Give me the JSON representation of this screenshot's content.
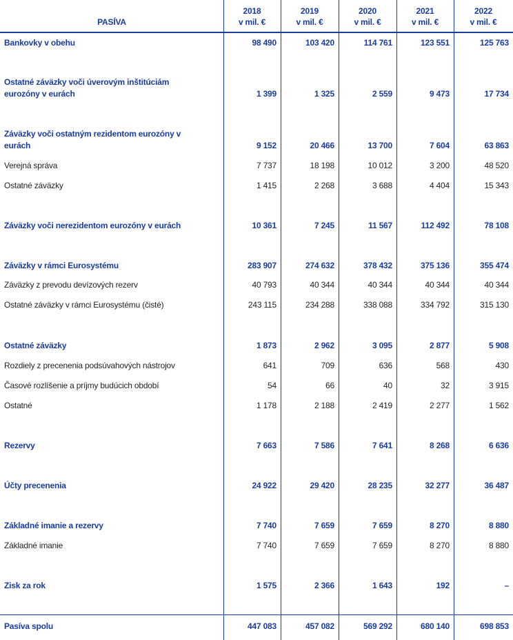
{
  "header": {
    "title": "PASÍVA",
    "columns": [
      {
        "year": "2018",
        "unit": "v mil. €"
      },
      {
        "year": "2019",
        "unit": "v mil. €"
      },
      {
        "year": "2020",
        "unit": "v mil. €"
      },
      {
        "year": "2021",
        "unit": "v mil. €"
      },
      {
        "year": "2022",
        "unit": "v mil. €"
      }
    ]
  },
  "colors": {
    "accent": "#1a3c9e",
    "text": "#222222"
  },
  "rows": [
    {
      "label": "Bankovky v obehu",
      "bold": true,
      "values": [
        "98 490",
        "103 420",
        "114 761",
        "123 551",
        "125 763"
      ]
    },
    {
      "label": "Ostatné záväzky voči úverovým inštitúciám eurozóny v eurách",
      "bold": true,
      "values": [
        "1 399",
        "1 325",
        "2 559",
        "9 473",
        "17 734"
      ]
    },
    {
      "label": "Záväzky voči ostatným rezidentom eurozóny v eurách",
      "bold": true,
      "values": [
        "9 152",
        "20 466",
        "13 700",
        "7 604",
        "63 863"
      ]
    },
    {
      "label": "Verejná správa",
      "bold": false,
      "values": [
        "7 737",
        "18 198",
        "10 012",
        "3 200",
        "48 520"
      ]
    },
    {
      "label": "Ostatné záväzky",
      "bold": false,
      "values": [
        "1 415",
        "2 268",
        "3 688",
        "4 404",
        "15 343"
      ]
    },
    {
      "label": "Záväzky voči nerezidentom eurozóny v eurách",
      "bold": true,
      "values": [
        "10 361",
        "7 245",
        "11 567",
        "112 492",
        "78 108"
      ]
    },
    {
      "label": "Záväzky v rámci Eurosystému",
      "bold": true,
      "values": [
        "283 907",
        "274 632",
        "378 432",
        "375 136",
        "355 474"
      ]
    },
    {
      "label": "Záväzky z prevodu devízových rezerv",
      "bold": false,
      "values": [
        "40 793",
        "40 344",
        "40 344",
        "40 344",
        "40 344"
      ]
    },
    {
      "label": "Ostatné záväzky v rámci Eurosystému (čisté)",
      "bold": false,
      "values": [
        "243 115",
        "234 288",
        "338 088",
        "334 792",
        "315 130"
      ]
    },
    {
      "label": "Ostatné záväzky",
      "bold": true,
      "values": [
        "1 873",
        "2 962",
        "3 095",
        "2 877",
        "5 908"
      ]
    },
    {
      "label": "Rozdiely z precenenia podsúvahových nástrojov",
      "bold": false,
      "values": [
        "641",
        "709",
        "636",
        "568",
        "430"
      ]
    },
    {
      "label": "Časové rozlíšenie a príjmy budúcich období",
      "bold": false,
      "values": [
        "54",
        "66",
        "40",
        "32",
        "3 915"
      ]
    },
    {
      "label": "Ostatné",
      "bold": false,
      "values": [
        "1 178",
        "2 188",
        "2 419",
        "2 277",
        "1 562"
      ]
    },
    {
      "label": "Rezervy",
      "bold": true,
      "values": [
        "7 663",
        "7 586",
        "7 641",
        "8 268",
        "6 636"
      ]
    },
    {
      "label": "Účty precenenia",
      "bold": true,
      "values": [
        "24 922",
        "29 420",
        "28 235",
        "32 277",
        "36 487"
      ]
    },
    {
      "label": "Základné imanie a rezervy",
      "bold": true,
      "values": [
        "7 740",
        "7 659",
        "7 659",
        "8 270",
        "8 880"
      ]
    },
    {
      "label": "Základné imanie",
      "bold": false,
      "values": [
        "7 740",
        "7 659",
        "7 659",
        "8 270",
        "8 880"
      ]
    },
    {
      "label": "Zisk za rok",
      "bold": true,
      "values": [
        "1 575",
        "2 366",
        "1 643",
        "192",
        "–"
      ]
    },
    {
      "label": "Pasíva spolu",
      "bold": true,
      "values": [
        "447 083",
        "457 082",
        "569 292",
        "680 140",
        "698 853"
      ]
    }
  ]
}
